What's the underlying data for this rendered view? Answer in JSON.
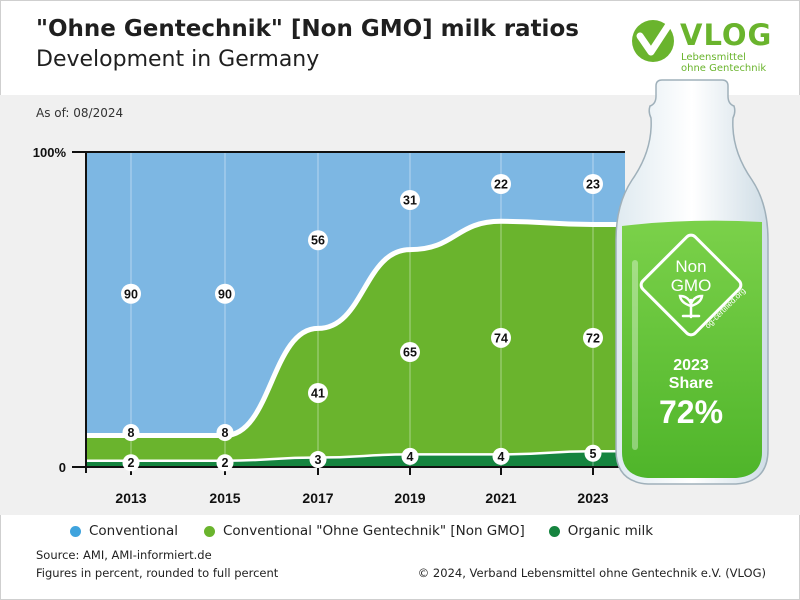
{
  "header": {
    "title": "\"Ohne Gentechnik\" [Non GMO] milk ratios",
    "subtitle": "Development in Germany",
    "as_of": "As of: 08/2024"
  },
  "logo": {
    "name": "VLOG",
    "tagline_1": "Lebensmittel",
    "tagline_2": "ohne Gentechnik",
    "color": "#6ab42d"
  },
  "bottle": {
    "seal_line_1": "Non",
    "seal_line_2": "GMO",
    "seal_url": "og-certified.org",
    "share_year": "2023",
    "share_label": "Share",
    "share_value": "72%"
  },
  "legend": [
    {
      "label": "Conventional",
      "color": "#3fa3dd"
    },
    {
      "label": "Conventional \"Ohne Gentechnik\" [Non GMO]",
      "color": "#6ab42d"
    },
    {
      "label": "Organic milk",
      "color": "#15843f"
    }
  ],
  "footer": {
    "source": "Source: AMI, AMI-informiert.de",
    "note": "Figures in percent, rounded to full percent",
    "copyright": "© 2024, Verband Lebensmittel ohne Gentechnik e.V. (VLOG)"
  },
  "chart_data": {
    "type": "area",
    "stacked": true,
    "x": [
      2013,
      2015,
      2017,
      2019,
      2021,
      2023
    ],
    "x_tick_labels": [
      "2013",
      "2015",
      "2017",
      "2019",
      "2021",
      "2023"
    ],
    "y_tick_labels": [
      "100%",
      "0"
    ],
    "ylim": [
      0,
      100
    ],
    "series": [
      {
        "name": "Organic milk",
        "values": [
          2,
          2,
          3,
          4,
          4,
          5
        ],
        "color": "#15843f"
      },
      {
        "name": "Conventional \"Ohne Gentechnik\" [Non GMO]",
        "values": [
          8,
          8,
          41,
          65,
          74,
          72
        ],
        "color": "#6ab42d"
      },
      {
        "name": "Conventional",
        "values": [
          90,
          90,
          56,
          31,
          22,
          23
        ],
        "color": "#7db7e3"
      }
    ],
    "grid": "vertical lines at years"
  }
}
